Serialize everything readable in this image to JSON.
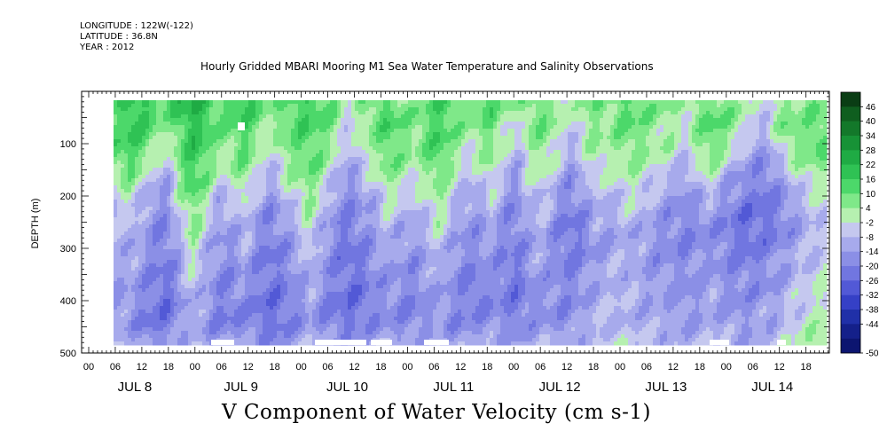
{
  "header": {
    "longitude": "LONGITUDE : 122W(-122)",
    "latitude": "LATITUDE : 36.8N",
    "year": "YEAR : 2012",
    "title": "Hourly Gridded MBARI Mooring M1 Sea Water Temperature and Salinity Observations"
  },
  "chart_data": {
    "type": "heatmap",
    "title": "Hourly Gridded MBARI Mooring M1 Sea Water Temperature and Salinity Observations",
    "xlabel": "V Component of Water Velocity (cm s-1)",
    "ylabel": "DEPTH (m)",
    "y_ticks": [
      100,
      200,
      300,
      400,
      500
    ],
    "ylim": [
      500,
      0
    ],
    "x_hour_ticks": [
      "00",
      "06",
      "12",
      "18",
      "00",
      "06",
      "12",
      "18",
      "00",
      "06",
      "12",
      "18",
      "00",
      "06",
      "12",
      "18",
      "00",
      "06",
      "12",
      "18",
      "00",
      "06",
      "12",
      "18",
      "00",
      "06",
      "12",
      "18"
    ],
    "x_day_labels": [
      "JUL  8",
      "JUL  9",
      "JUL 10",
      "JUL 11",
      "JUL 12",
      "JUL 13",
      "JUL 14"
    ],
    "colorbar": {
      "levels": [
        "46",
        "40",
        "34",
        "28",
        "22",
        "16",
        "10",
        "4",
        "-2",
        "-8",
        "-14",
        "-20",
        "-26",
        "-32",
        "-38",
        "-44",
        "-50"
      ],
      "colors": [
        "#0a3d14",
        "#0f5e1f",
        "#13782a",
        "#179236",
        "#1fab44",
        "#2fc254",
        "#4cd86a",
        "#7fe889",
        "#b6f0b0",
        "#c5c8ef",
        "#a7aaec",
        "#8b8fe6",
        "#7176e0",
        "#5259d6",
        "#3540c6",
        "#2030a8",
        "#14208a",
        "#0c1570"
      ]
    },
    "series_note": "",
    "rows": [
      [
        8,
        20,
        18,
        15,
        12,
        20,
        22,
        18,
        10,
        14,
        18,
        12,
        6,
        10,
        14,
        16,
        12,
        8,
        -4,
        6,
        10,
        12,
        8,
        4,
        10,
        14,
        12,
        8,
        10,
        12,
        6,
        4,
        8,
        10,
        6,
        -2,
        4,
        8,
        6,
        10,
        12,
        8,
        6,
        4,
        2,
        8,
        10,
        6,
        4,
        -4,
        -6,
        2,
        6,
        4,
        8,
        6
      ],
      [
        10,
        18,
        16,
        10,
        4,
        14,
        20,
        16,
        8,
        10,
        14,
        8,
        2,
        8,
        12,
        14,
        10,
        6,
        -6,
        4,
        8,
        14,
        10,
        6,
        12,
        16,
        10,
        4,
        6,
        10,
        2,
        -4,
        6,
        8,
        4,
        -6,
        2,
        6,
        4,
        8,
        10,
        6,
        4,
        2,
        0,
        6,
        12,
        8,
        6,
        -2,
        -8,
        4,
        8,
        6,
        10,
        8
      ],
      [
        12,
        16,
        12,
        6,
        -2,
        10,
        18,
        14,
        4,
        6,
        12,
        4,
        -4,
        6,
        10,
        12,
        8,
        2,
        -10,
        0,
        4,
        12,
        8,
        4,
        10,
        14,
        6,
        0,
        2,
        8,
        -2,
        -8,
        4,
        6,
        0,
        -10,
        -2,
        4,
        2,
        6,
        8,
        4,
        2,
        0,
        -6,
        4,
        10,
        4,
        -4,
        -10,
        -14,
        -6,
        6,
        8,
        12,
        10
      ],
      [
        6,
        10,
        4,
        -6,
        -10,
        8,
        16,
        10,
        -2,
        2,
        8,
        -2,
        -10,
        2,
        6,
        10,
        4,
        -6,
        -14,
        -6,
        0,
        8,
        4,
        0,
        6,
        10,
        2,
        -6,
        -4,
        4,
        -8,
        -12,
        0,
        2,
        -6,
        -14,
        -8,
        0,
        -2,
        2,
        4,
        0,
        -4,
        -6,
        -12,
        -2,
        4,
        -6,
        -12,
        -16,
        -18,
        -14,
        -4,
        2,
        4,
        6
      ],
      [
        -4,
        2,
        -6,
        -12,
        -14,
        2,
        12,
        4,
        -8,
        -4,
        2,
        -8,
        -14,
        -6,
        0,
        6,
        -2,
        -12,
        -18,
        -12,
        -8,
        2,
        -2,
        -6,
        0,
        6,
        -4,
        -10,
        -10,
        -2,
        -14,
        -16,
        -6,
        -4,
        -12,
        -18,
        -14,
        -6,
        -8,
        -4,
        -2,
        -6,
        -10,
        -12,
        -16,
        -10,
        -6,
        -14,
        -18,
        -20,
        -22,
        -18,
        -12,
        -6,
        -2,
        0
      ],
      [
        -8,
        -4,
        -10,
        -16,
        -18,
        -4,
        8,
        -2,
        -12,
        -10,
        -4,
        -14,
        -18,
        -12,
        -6,
        2,
        -8,
        -16,
        -20,
        -16,
        -12,
        -4,
        -8,
        -12,
        -6,
        2,
        -8,
        -14,
        -14,
        -8,
        -16,
        -18,
        -10,
        -8,
        -16,
        -20,
        -18,
        -10,
        -12,
        -8,
        -6,
        -10,
        -14,
        -16,
        -18,
        -16,
        -14,
        -18,
        -22,
        -24,
        -24,
        -20,
        -16,
        -10,
        -6,
        -4
      ],
      [
        -10,
        -8,
        -12,
        -18,
        -20,
        -8,
        4,
        -6,
        -14,
        -14,
        -8,
        -16,
        -20,
        -16,
        -10,
        -2,
        -12,
        -18,
        -22,
        -18,
        -14,
        -8,
        -12,
        -14,
        -10,
        -2,
        -12,
        -16,
        -16,
        -12,
        -18,
        -20,
        -12,
        -10,
        -18,
        -22,
        -20,
        -14,
        -14,
        -12,
        -10,
        -14,
        -16,
        -18,
        -20,
        -18,
        -16,
        -20,
        -22,
        -24,
        -22,
        -20,
        -16,
        -12,
        -8,
        -6
      ],
      [
        -12,
        -10,
        -14,
        -18,
        -20,
        -12,
        0,
        -10,
        -16,
        -16,
        -12,
        -18,
        -22,
        -18,
        -14,
        -6,
        -14,
        -20,
        -22,
        -20,
        -16,
        -12,
        -14,
        -16,
        -12,
        -6,
        -14,
        -18,
        -18,
        -14,
        -20,
        -20,
        -14,
        -12,
        -18,
        -20,
        -18,
        -14,
        -12,
        -10,
        -10,
        -14,
        -16,
        -16,
        -18,
        -16,
        -14,
        -18,
        -20,
        -20,
        -18,
        -16,
        -12,
        -8,
        -6,
        -4
      ],
      [
        -14,
        -12,
        -16,
        -20,
        -22,
        -14,
        -4,
        -12,
        -18,
        -18,
        -14,
        -20,
        -22,
        -20,
        -16,
        -8,
        -16,
        -20,
        -24,
        -22,
        -18,
        -14,
        -16,
        -18,
        -14,
        -10,
        -16,
        -20,
        -20,
        -16,
        -20,
        -22,
        -16,
        -14,
        -18,
        -20,
        -16,
        -12,
        -10,
        -8,
        -10,
        -14,
        -14,
        -14,
        -16,
        -14,
        -12,
        -16,
        -18,
        -18,
        -16,
        -14,
        -10,
        -6,
        -4,
        -2
      ],
      [
        -14,
        -14,
        -18,
        -22,
        -24,
        -16,
        -8,
        -14,
        -20,
        -20,
        -16,
        -22,
        -24,
        -22,
        -18,
        -12,
        -18,
        -22,
        -24,
        -22,
        -18,
        -16,
        -18,
        -20,
        -16,
        -12,
        -18,
        -20,
        -20,
        -18,
        -20,
        -22,
        -18,
        -16,
        -18,
        -18,
        -14,
        -10,
        -8,
        -8,
        -10,
        -12,
        -12,
        -14,
        -16,
        -14,
        -12,
        -14,
        -16,
        -16,
        -14,
        -12,
        -8,
        -4,
        -2,
        0
      ],
      [
        -12,
        -14,
        -20,
        -22,
        -22,
        -16,
        -10,
        -16,
        -20,
        -20,
        -18,
        -22,
        -24,
        -22,
        -18,
        -14,
        -18,
        -20,
        -22,
        -20,
        -18,
        -16,
        -18,
        -18,
        -16,
        -14,
        -18,
        -18,
        -18,
        -16,
        -18,
        -20,
        -16,
        -14,
        -16,
        -16,
        -12,
        -10,
        -8,
        -8,
        -10,
        -10,
        -12,
        -12,
        -14,
        -12,
        -10,
        -12,
        -14,
        -14,
        -12,
        -10,
        -6,
        -2,
        0,
        2
      ],
      [
        -6,
        -8,
        -14,
        -16,
        -14,
        -10,
        -6,
        -10,
        -14,
        -12,
        -10,
        -14,
        -16,
        -14,
        -10,
        -8,
        -10,
        -12,
        -14,
        -12,
        -10,
        -10,
        -12,
        -12,
        -10,
        -8,
        -10,
        -12,
        -10,
        -8,
        -10,
        -12,
        -10,
        -8,
        -10,
        -10,
        -8,
        -6,
        -4,
        -4,
        -6,
        -6,
        -8,
        -8,
        -10,
        -8,
        -6,
        -8,
        -10,
        -10,
        -8,
        -6,
        -2,
        2,
        4,
        6
      ]
    ]
  },
  "ticks": {
    "y_axis_ticks_label": "DEPTH (m)"
  }
}
